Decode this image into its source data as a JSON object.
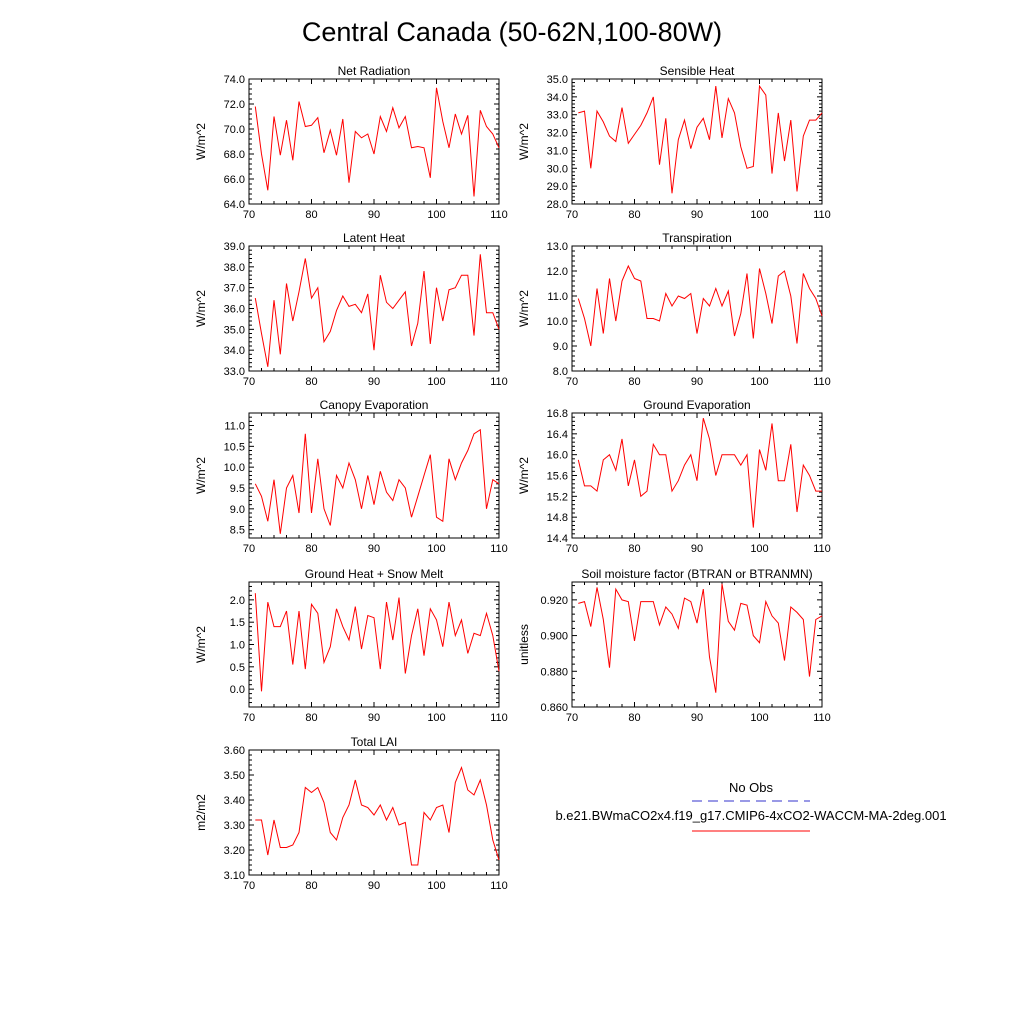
{
  "figure": {
    "title": "Central Canada (50-62N,100-80W)"
  },
  "legend": {
    "obs_label": "No Obs",
    "model_label": "b.e21.BWmaCO2x4.f19_g17.CMIP6-4xCO2-WACCM-MA-2deg.001",
    "obs_color": "#3333cc",
    "model_color": "#ff0000"
  },
  "chart_data": [
    {
      "type": "line",
      "title": "Net Radiation",
      "ylabel": "W/m^2",
      "xlim": [
        70,
        110
      ],
      "ylim": [
        64,
        74
      ],
      "xticks": [
        70,
        80,
        90,
        100,
        110
      ],
      "xtick_labels": [
        "70",
        "80",
        "90",
        "100",
        "110"
      ],
      "yticks": [
        64,
        66,
        68,
        70,
        72,
        74
      ],
      "ytick_labels": [
        "64.0",
        "66.0",
        "68.0",
        "70.0",
        "72.0",
        "74.0"
      ],
      "series": [
        {
          "color": "#ff0000",
          "x_start": 71,
          "values": [
            71.8,
            68.0,
            65.1,
            71.0,
            67.9,
            70.7,
            67.5,
            72.2,
            70.2,
            70.3,
            70.9,
            68.1,
            69.9,
            67.9,
            70.8,
            65.7,
            69.8,
            69.3,
            69.6,
            68.0,
            71.0,
            69.8,
            71.7,
            70.1,
            71.0,
            68.5,
            68.6,
            68.5,
            66.1,
            73.3,
            70.6,
            68.5,
            71.2,
            69.6,
            71.1,
            64.6,
            71.5,
            70.2,
            69.6,
            68.5
          ]
        }
      ]
    },
    {
      "type": "line",
      "title": "Sensible Heat",
      "ylabel": "W/m^2",
      "xlim": [
        70,
        110
      ],
      "ylim": [
        28,
        35
      ],
      "xticks": [
        70,
        80,
        90,
        100,
        110
      ],
      "xtick_labels": [
        "70",
        "80",
        "90",
        "100",
        "110"
      ],
      "yticks": [
        28,
        29,
        30,
        31,
        32,
        33,
        34,
        35
      ],
      "ytick_labels": [
        "28.0",
        "29.0",
        "30.0",
        "31.0",
        "32.0",
        "33.0",
        "34.0",
        "35.0"
      ],
      "series": [
        {
          "color": "#ff0000",
          "x_start": 71,
          "values": [
            33.1,
            33.2,
            30.0,
            33.2,
            32.6,
            31.8,
            31.5,
            33.4,
            31.4,
            31.9,
            32.4,
            33.1,
            34.0,
            30.2,
            32.8,
            28.6,
            31.6,
            32.7,
            31.1,
            32.3,
            32.8,
            31.6,
            34.6,
            31.7,
            33.9,
            33.1,
            31.2,
            30.0,
            30.1,
            34.6,
            34.1,
            29.7,
            33.1,
            30.4,
            32.7,
            28.7,
            31.8,
            32.7,
            32.7,
            33.1
          ]
        }
      ]
    },
    {
      "type": "line",
      "title": "Latent Heat",
      "ylabel": "W/m^2",
      "xlim": [
        70,
        110
      ],
      "ylim": [
        33,
        39
      ],
      "xticks": [
        70,
        80,
        90,
        100,
        110
      ],
      "xtick_labels": [
        "70",
        "80",
        "90",
        "100",
        "110"
      ],
      "yticks": [
        33,
        34,
        35,
        36,
        37,
        38,
        39
      ],
      "ytick_labels": [
        "33.0",
        "34.0",
        "35.0",
        "36.0",
        "37.0",
        "38.0",
        "39.0"
      ],
      "series": [
        {
          "color": "#ff0000",
          "x_start": 71,
          "values": [
            36.5,
            34.8,
            33.2,
            36.4,
            33.8,
            37.2,
            35.4,
            36.8,
            38.4,
            36.5,
            37.0,
            34.4,
            34.9,
            35.9,
            36.6,
            36.1,
            36.2,
            35.8,
            36.7,
            34.0,
            37.6,
            36.3,
            36.0,
            36.4,
            36.8,
            34.2,
            35.3,
            37.8,
            34.3,
            37.0,
            35.4,
            36.9,
            37.0,
            37.6,
            37.6,
            34.7,
            38.6,
            35.8,
            35.8,
            35.0
          ]
        }
      ]
    },
    {
      "type": "line",
      "title": "Transpiration",
      "ylabel": "W/m^2",
      "xlim": [
        70,
        110
      ],
      "ylim": [
        8,
        13
      ],
      "xticks": [
        70,
        80,
        90,
        100,
        110
      ],
      "xtick_labels": [
        "70",
        "80",
        "90",
        "100",
        "110"
      ],
      "yticks": [
        8,
        9,
        10,
        11,
        12,
        13
      ],
      "ytick_labels": [
        "8.0",
        "9.0",
        "10.0",
        "11.0",
        "12.0",
        "13.0"
      ],
      "series": [
        {
          "color": "#ff0000",
          "x_start": 71,
          "values": [
            10.9,
            10.1,
            9.0,
            11.3,
            9.5,
            11.7,
            10.0,
            11.6,
            12.2,
            11.7,
            11.6,
            10.1,
            10.1,
            10.0,
            11.1,
            10.6,
            11.0,
            10.9,
            11.1,
            9.5,
            10.9,
            10.6,
            11.3,
            10.6,
            11.2,
            9.4,
            10.3,
            11.9,
            9.3,
            12.1,
            11.1,
            9.9,
            11.8,
            12.0,
            11.0,
            9.1,
            11.9,
            11.3,
            10.9,
            10.2
          ]
        }
      ]
    },
    {
      "type": "line",
      "title": "Canopy Evaporation",
      "ylabel": "W/m^2",
      "xlim": [
        70,
        110
      ],
      "ylim": [
        8.3,
        11.3
      ],
      "xticks": [
        70,
        80,
        90,
        100,
        110
      ],
      "xtick_labels": [
        "70",
        "80",
        "90",
        "100",
        "110"
      ],
      "yticks": [
        8.5,
        9.0,
        9.5,
        10.0,
        10.5,
        11.0
      ],
      "ytick_labels": [
        "8.5",
        "9.0",
        "9.5",
        "10.0",
        "10.5",
        "11.0"
      ],
      "series": [
        {
          "color": "#ff0000",
          "x_start": 71,
          "values": [
            9.6,
            9.3,
            8.7,
            9.7,
            8.4,
            9.5,
            9.8,
            8.9,
            10.8,
            8.9,
            10.2,
            9.0,
            8.6,
            9.8,
            9.5,
            10.1,
            9.7,
            9.0,
            9.8,
            9.1,
            9.9,
            9.4,
            9.2,
            9.7,
            9.5,
            8.8,
            9.3,
            9.8,
            10.3,
            8.8,
            8.7,
            10.2,
            9.7,
            10.1,
            10.4,
            10.8,
            10.9,
            9.0,
            9.7,
            9.6
          ]
        }
      ]
    },
    {
      "type": "line",
      "title": "Ground Evaporation",
      "ylabel": "W/m^2",
      "xlim": [
        70,
        110
      ],
      "ylim": [
        14.4,
        16.8
      ],
      "xticks": [
        70,
        80,
        90,
        100,
        110
      ],
      "xtick_labels": [
        "70",
        "80",
        "90",
        "100",
        "110"
      ],
      "yticks": [
        14.4,
        14.8,
        15.2,
        15.6,
        16.0,
        16.4,
        16.8
      ],
      "ytick_labels": [
        "14.4",
        "14.8",
        "15.2",
        "15.6",
        "16.0",
        "16.4",
        "16.8"
      ],
      "series": [
        {
          "color": "#ff0000",
          "x_start": 71,
          "values": [
            15.9,
            15.4,
            15.4,
            15.3,
            15.9,
            16.0,
            15.7,
            16.3,
            15.4,
            15.9,
            15.2,
            15.3,
            16.2,
            16.0,
            16.0,
            15.3,
            15.5,
            15.8,
            16.0,
            15.5,
            16.7,
            16.3,
            15.6,
            16.0,
            16.0,
            16.0,
            15.8,
            16.0,
            14.6,
            16.1,
            15.7,
            16.6,
            15.5,
            15.5,
            16.2,
            14.9,
            15.8,
            15.6,
            15.3,
            15.3
          ]
        }
      ]
    },
    {
      "type": "line",
      "title": "Ground Heat + Snow Melt",
      "ylabel": "W/m^2",
      "xlim": [
        70,
        110
      ],
      "ylim": [
        -0.4,
        2.4
      ],
      "xticks": [
        70,
        80,
        90,
        100,
        110
      ],
      "xtick_labels": [
        "70",
        "80",
        "90",
        "100",
        "110"
      ],
      "yticks": [
        0,
        0.5,
        1.0,
        1.5,
        2.0
      ],
      "ytick_labels": [
        "0.0",
        "0.5",
        "1.0",
        "1.5",
        "2.0"
      ],
      "series": [
        {
          "color": "#ff0000",
          "x_start": 71,
          "values": [
            2.15,
            -0.05,
            1.95,
            1.4,
            1.4,
            1.75,
            0.55,
            1.75,
            0.45,
            1.9,
            1.7,
            0.6,
            0.95,
            1.8,
            1.4,
            1.1,
            1.85,
            0.9,
            1.65,
            1.6,
            0.45,
            1.95,
            1.1,
            2.05,
            0.35,
            1.2,
            1.8,
            0.75,
            1.8,
            1.55,
            0.95,
            1.95,
            1.2,
            1.55,
            0.8,
            1.25,
            1.2,
            1.7,
            1.2,
            0.4
          ]
        }
      ]
    },
    {
      "type": "line",
      "title": "Soil moisture factor (BTRAN or BTRANMN)",
      "ylabel": "unitless",
      "xlim": [
        70,
        110
      ],
      "ylim": [
        0.86,
        0.93
      ],
      "xticks": [
        70,
        80,
        90,
        100,
        110
      ],
      "xtick_labels": [
        "70",
        "80",
        "90",
        "100",
        "110"
      ],
      "yticks": [
        0.86,
        0.88,
        0.9,
        0.92
      ],
      "ytick_labels": [
        "0.860",
        "0.880",
        "0.900",
        "0.920"
      ],
      "series": [
        {
          "color": "#ff0000",
          "x_start": 71,
          "values": [
            0.918,
            0.919,
            0.905,
            0.927,
            0.909,
            0.882,
            0.926,
            0.92,
            0.919,
            0.897,
            0.919,
            0.919,
            0.919,
            0.906,
            0.916,
            0.912,
            0.904,
            0.921,
            0.919,
            0.907,
            0.926,
            0.888,
            0.868,
            0.929,
            0.908,
            0.903,
            0.918,
            0.917,
            0.9,
            0.896,
            0.919,
            0.911,
            0.907,
            0.886,
            0.916,
            0.913,
            0.909,
            0.877,
            0.909,
            0.911
          ]
        }
      ]
    },
    {
      "type": "line",
      "title": "Total LAI",
      "ylabel": "m2/m2",
      "xlim": [
        70,
        110
      ],
      "ylim": [
        3.1,
        3.6
      ],
      "xticks": [
        70,
        80,
        90,
        100,
        110
      ],
      "xtick_labels": [
        "70",
        "80",
        "90",
        "100",
        "110"
      ],
      "yticks": [
        3.1,
        3.2,
        3.3,
        3.4,
        3.5,
        3.6
      ],
      "ytick_labels": [
        "3.10",
        "3.20",
        "3.30",
        "3.40",
        "3.50",
        "3.60"
      ],
      "series": [
        {
          "color": "#ff0000",
          "x_start": 71,
          "values": [
            3.32,
            3.32,
            3.18,
            3.32,
            3.21,
            3.21,
            3.22,
            3.27,
            3.45,
            3.43,
            3.45,
            3.39,
            3.27,
            3.24,
            3.33,
            3.38,
            3.48,
            3.38,
            3.37,
            3.34,
            3.38,
            3.32,
            3.37,
            3.3,
            3.31,
            3.14,
            3.14,
            3.35,
            3.32,
            3.37,
            3.38,
            3.27,
            3.47,
            3.53,
            3.44,
            3.42,
            3.48,
            3.38,
            3.24,
            3.16
          ]
        }
      ]
    }
  ]
}
